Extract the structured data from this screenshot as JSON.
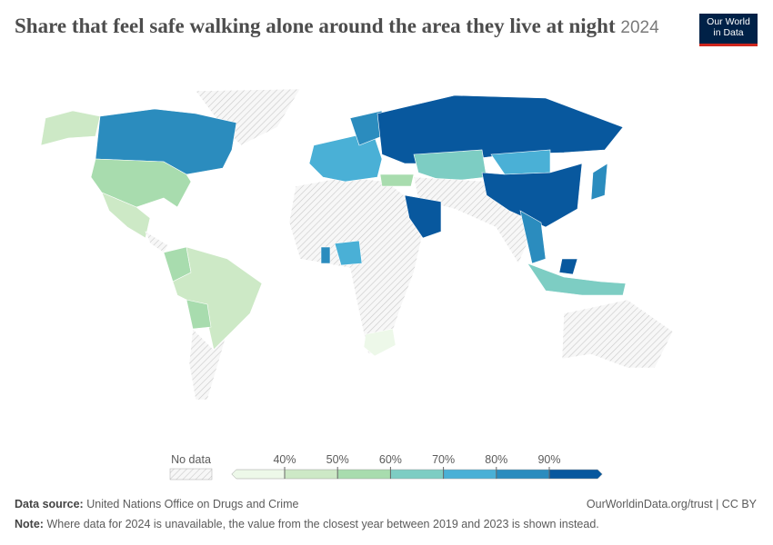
{
  "header": {
    "title": "Share that feel safe walking alone around the area they live at night",
    "year": "2024",
    "logo": [
      "Our World",
      "in Data"
    ]
  },
  "legend": {
    "no_data": "No data",
    "ticks": [
      {
        "value": 40,
        "label": "40%"
      },
      {
        "value": 50,
        "label": "50%"
      },
      {
        "value": 60,
        "label": "60%"
      },
      {
        "value": 70,
        "label": "70%"
      },
      {
        "value": 80,
        "label": "80%"
      },
      {
        "value": 90,
        "label": "90%"
      }
    ],
    "colors": [
      "#edf8e9",
      "#cde9c6",
      "#a8dcae",
      "#7dcdc3",
      "#4ab0d6",
      "#2b8cbe",
      "#08589e"
    ]
  },
  "footer": {
    "source_label": "Data source:",
    "source": "United Nations Office on Drugs and Crime",
    "license": "OurWorldinData.org/trust | CC BY",
    "note_label": "Note:",
    "note": "Where data for 2024 is unavailable, the value from the closest year between 2019 and 2023 is shown instead."
  }
}
